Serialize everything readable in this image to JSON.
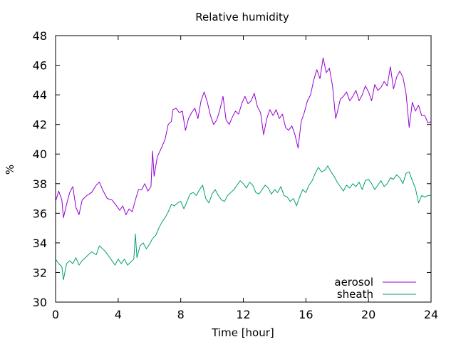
{
  "chart_data": {
    "type": "line",
    "title": "Relative humidity",
    "xlabel": "Time [hour]",
    "ylabel": "%",
    "xlim": [
      0,
      24
    ],
    "ylim": [
      30,
      48
    ],
    "x_ticks": [
      0,
      4,
      8,
      12,
      16,
      20,
      24
    ],
    "y_ticks": [
      30,
      32,
      34,
      36,
      38,
      40,
      42,
      44,
      46,
      48
    ],
    "grid": false,
    "legend_position": "bottom-right",
    "series": [
      {
        "name": "aerosol",
        "color": "#9400d3",
        "points": [
          [
            0.0,
            36.8
          ],
          [
            0.2,
            37.5
          ],
          [
            0.4,
            36.9
          ],
          [
            0.5,
            35.7
          ],
          [
            0.7,
            36.6
          ],
          [
            0.9,
            37.4
          ],
          [
            1.1,
            37.8
          ],
          [
            1.3,
            36.4
          ],
          [
            1.5,
            35.9
          ],
          [
            1.7,
            36.9
          ],
          [
            2.0,
            37.2
          ],
          [
            2.3,
            37.4
          ],
          [
            2.6,
            37.9
          ],
          [
            2.8,
            38.1
          ],
          [
            3.0,
            37.6
          ],
          [
            3.3,
            37.0
          ],
          [
            3.6,
            36.9
          ],
          [
            3.9,
            36.5
          ],
          [
            4.1,
            36.2
          ],
          [
            4.3,
            36.5
          ],
          [
            4.5,
            35.9
          ],
          [
            4.7,
            36.3
          ],
          [
            4.9,
            36.1
          ],
          [
            5.1,
            36.9
          ],
          [
            5.3,
            37.6
          ],
          [
            5.5,
            37.6
          ],
          [
            5.7,
            38.0
          ],
          [
            5.9,
            37.5
          ],
          [
            6.1,
            37.8
          ],
          [
            6.2,
            40.2
          ],
          [
            6.3,
            38.5
          ],
          [
            6.5,
            39.8
          ],
          [
            6.8,
            40.5
          ],
          [
            7.0,
            41.0
          ],
          [
            7.2,
            42.0
          ],
          [
            7.4,
            42.2
          ],
          [
            7.5,
            43.0
          ],
          [
            7.7,
            43.1
          ],
          [
            7.9,
            42.8
          ],
          [
            8.1,
            42.9
          ],
          [
            8.3,
            41.6
          ],
          [
            8.5,
            42.4
          ],
          [
            8.7,
            42.8
          ],
          [
            8.9,
            43.1
          ],
          [
            9.1,
            42.4
          ],
          [
            9.3,
            43.6
          ],
          [
            9.5,
            44.2
          ],
          [
            9.7,
            43.5
          ],
          [
            9.9,
            42.6
          ],
          [
            10.1,
            42.0
          ],
          [
            10.3,
            42.3
          ],
          [
            10.5,
            43.0
          ],
          [
            10.7,
            43.9
          ],
          [
            10.9,
            42.3
          ],
          [
            11.1,
            42.0
          ],
          [
            11.3,
            42.5
          ],
          [
            11.5,
            42.9
          ],
          [
            11.7,
            42.7
          ],
          [
            11.9,
            43.4
          ],
          [
            12.1,
            43.9
          ],
          [
            12.3,
            43.4
          ],
          [
            12.5,
            43.6
          ],
          [
            12.7,
            44.1
          ],
          [
            12.9,
            43.2
          ],
          [
            13.1,
            42.8
          ],
          [
            13.3,
            41.3
          ],
          [
            13.5,
            42.4
          ],
          [
            13.7,
            43.0
          ],
          [
            13.9,
            42.6
          ],
          [
            14.1,
            43.0
          ],
          [
            14.3,
            42.4
          ],
          [
            14.5,
            42.7
          ],
          [
            14.7,
            41.8
          ],
          [
            14.9,
            41.6
          ],
          [
            15.1,
            41.9
          ],
          [
            15.3,
            41.3
          ],
          [
            15.5,
            40.4
          ],
          [
            15.7,
            42.2
          ],
          [
            15.9,
            42.8
          ],
          [
            16.1,
            43.6
          ],
          [
            16.3,
            44.0
          ],
          [
            16.5,
            45.0
          ],
          [
            16.7,
            45.7
          ],
          [
            16.9,
            45.1
          ],
          [
            17.1,
            46.5
          ],
          [
            17.3,
            45.5
          ],
          [
            17.5,
            45.8
          ],
          [
            17.7,
            44.6
          ],
          [
            17.9,
            42.4
          ],
          [
            18.0,
            42.8
          ],
          [
            18.2,
            43.7
          ],
          [
            18.4,
            43.9
          ],
          [
            18.6,
            44.2
          ],
          [
            18.8,
            43.6
          ],
          [
            19.0,
            43.9
          ],
          [
            19.2,
            44.3
          ],
          [
            19.4,
            43.6
          ],
          [
            19.6,
            44.0
          ],
          [
            19.8,
            44.6
          ],
          [
            20.0,
            44.2
          ],
          [
            20.2,
            43.6
          ],
          [
            20.4,
            44.7
          ],
          [
            20.6,
            44.3
          ],
          [
            20.8,
            44.5
          ],
          [
            21.0,
            44.9
          ],
          [
            21.2,
            44.6
          ],
          [
            21.4,
            45.9
          ],
          [
            21.6,
            44.4
          ],
          [
            21.8,
            45.2
          ],
          [
            22.0,
            45.6
          ],
          [
            22.2,
            45.2
          ],
          [
            22.4,
            44.1
          ],
          [
            22.6,
            41.8
          ],
          [
            22.8,
            43.5
          ],
          [
            23.0,
            42.9
          ],
          [
            23.2,
            43.3
          ],
          [
            23.4,
            42.6
          ],
          [
            23.6,
            42.6
          ],
          [
            23.8,
            42.1
          ],
          [
            24.0,
            42.2
          ]
        ]
      },
      {
        "name": "sheath",
        "color": "#009e73",
        "points": [
          [
            0.0,
            32.9
          ],
          [
            0.2,
            32.6
          ],
          [
            0.4,
            32.4
          ],
          [
            0.5,
            31.5
          ],
          [
            0.7,
            32.6
          ],
          [
            0.9,
            32.8
          ],
          [
            1.1,
            32.6
          ],
          [
            1.3,
            33.0
          ],
          [
            1.5,
            32.5
          ],
          [
            1.7,
            32.8
          ],
          [
            2.0,
            33.1
          ],
          [
            2.3,
            33.4
          ],
          [
            2.6,
            33.2
          ],
          [
            2.8,
            33.8
          ],
          [
            3.0,
            33.6
          ],
          [
            3.2,
            33.4
          ],
          [
            3.4,
            33.1
          ],
          [
            3.6,
            32.8
          ],
          [
            3.8,
            32.5
          ],
          [
            4.0,
            32.9
          ],
          [
            4.2,
            32.6
          ],
          [
            4.4,
            32.9
          ],
          [
            4.6,
            32.5
          ],
          [
            4.8,
            32.7
          ],
          [
            5.0,
            32.9
          ],
          [
            5.1,
            34.6
          ],
          [
            5.2,
            33.0
          ],
          [
            5.4,
            33.8
          ],
          [
            5.6,
            34.0
          ],
          [
            5.8,
            33.6
          ],
          [
            6.0,
            33.9
          ],
          [
            6.2,
            34.3
          ],
          [
            6.4,
            34.5
          ],
          [
            6.6,
            35.0
          ],
          [
            6.8,
            35.4
          ],
          [
            7.0,
            35.7
          ],
          [
            7.2,
            36.1
          ],
          [
            7.4,
            36.6
          ],
          [
            7.6,
            36.5
          ],
          [
            7.8,
            36.7
          ],
          [
            8.0,
            36.8
          ],
          [
            8.2,
            36.3
          ],
          [
            8.4,
            36.8
          ],
          [
            8.6,
            37.3
          ],
          [
            8.8,
            37.4
          ],
          [
            9.0,
            37.2
          ],
          [
            9.2,
            37.6
          ],
          [
            9.4,
            37.9
          ],
          [
            9.6,
            37.0
          ],
          [
            9.8,
            36.7
          ],
          [
            10.0,
            37.3
          ],
          [
            10.2,
            37.6
          ],
          [
            10.4,
            37.2
          ],
          [
            10.6,
            36.9
          ],
          [
            10.8,
            36.8
          ],
          [
            11.0,
            37.2
          ],
          [
            11.2,
            37.4
          ],
          [
            11.4,
            37.6
          ],
          [
            11.6,
            37.9
          ],
          [
            11.8,
            38.2
          ],
          [
            12.0,
            38.0
          ],
          [
            12.2,
            37.7
          ],
          [
            12.4,
            38.1
          ],
          [
            12.6,
            37.9
          ],
          [
            12.8,
            37.4
          ],
          [
            13.0,
            37.3
          ],
          [
            13.2,
            37.6
          ],
          [
            13.4,
            37.9
          ],
          [
            13.6,
            37.7
          ],
          [
            13.8,
            37.3
          ],
          [
            14.0,
            37.6
          ],
          [
            14.2,
            37.4
          ],
          [
            14.4,
            37.8
          ],
          [
            14.6,
            37.2
          ],
          [
            14.8,
            37.1
          ],
          [
            15.0,
            36.8
          ],
          [
            15.2,
            37.0
          ],
          [
            15.4,
            36.5
          ],
          [
            15.6,
            37.1
          ],
          [
            15.8,
            37.6
          ],
          [
            16.0,
            37.4
          ],
          [
            16.2,
            37.9
          ],
          [
            16.4,
            38.2
          ],
          [
            16.6,
            38.7
          ],
          [
            16.8,
            39.1
          ],
          [
            17.0,
            38.8
          ],
          [
            17.2,
            38.9
          ],
          [
            17.4,
            39.2
          ],
          [
            17.6,
            38.8
          ],
          [
            17.8,
            38.5
          ],
          [
            18.0,
            38.1
          ],
          [
            18.2,
            37.8
          ],
          [
            18.4,
            37.5
          ],
          [
            18.6,
            37.9
          ],
          [
            18.8,
            37.7
          ],
          [
            19.0,
            38.0
          ],
          [
            19.2,
            37.8
          ],
          [
            19.4,
            38.1
          ],
          [
            19.6,
            37.6
          ],
          [
            19.8,
            38.2
          ],
          [
            20.0,
            38.3
          ],
          [
            20.2,
            38.0
          ],
          [
            20.4,
            37.6
          ],
          [
            20.6,
            37.9
          ],
          [
            20.8,
            38.2
          ],
          [
            21.0,
            37.8
          ],
          [
            21.2,
            38.0
          ],
          [
            21.4,
            38.4
          ],
          [
            21.6,
            38.3
          ],
          [
            21.8,
            38.6
          ],
          [
            22.0,
            38.4
          ],
          [
            22.2,
            38.0
          ],
          [
            22.4,
            38.7
          ],
          [
            22.6,
            38.8
          ],
          [
            22.8,
            38.2
          ],
          [
            23.0,
            37.7
          ],
          [
            23.2,
            36.7
          ],
          [
            23.4,
            37.2
          ],
          [
            23.6,
            37.1
          ],
          [
            23.8,
            37.2
          ],
          [
            24.0,
            37.2
          ]
        ]
      }
    ]
  }
}
